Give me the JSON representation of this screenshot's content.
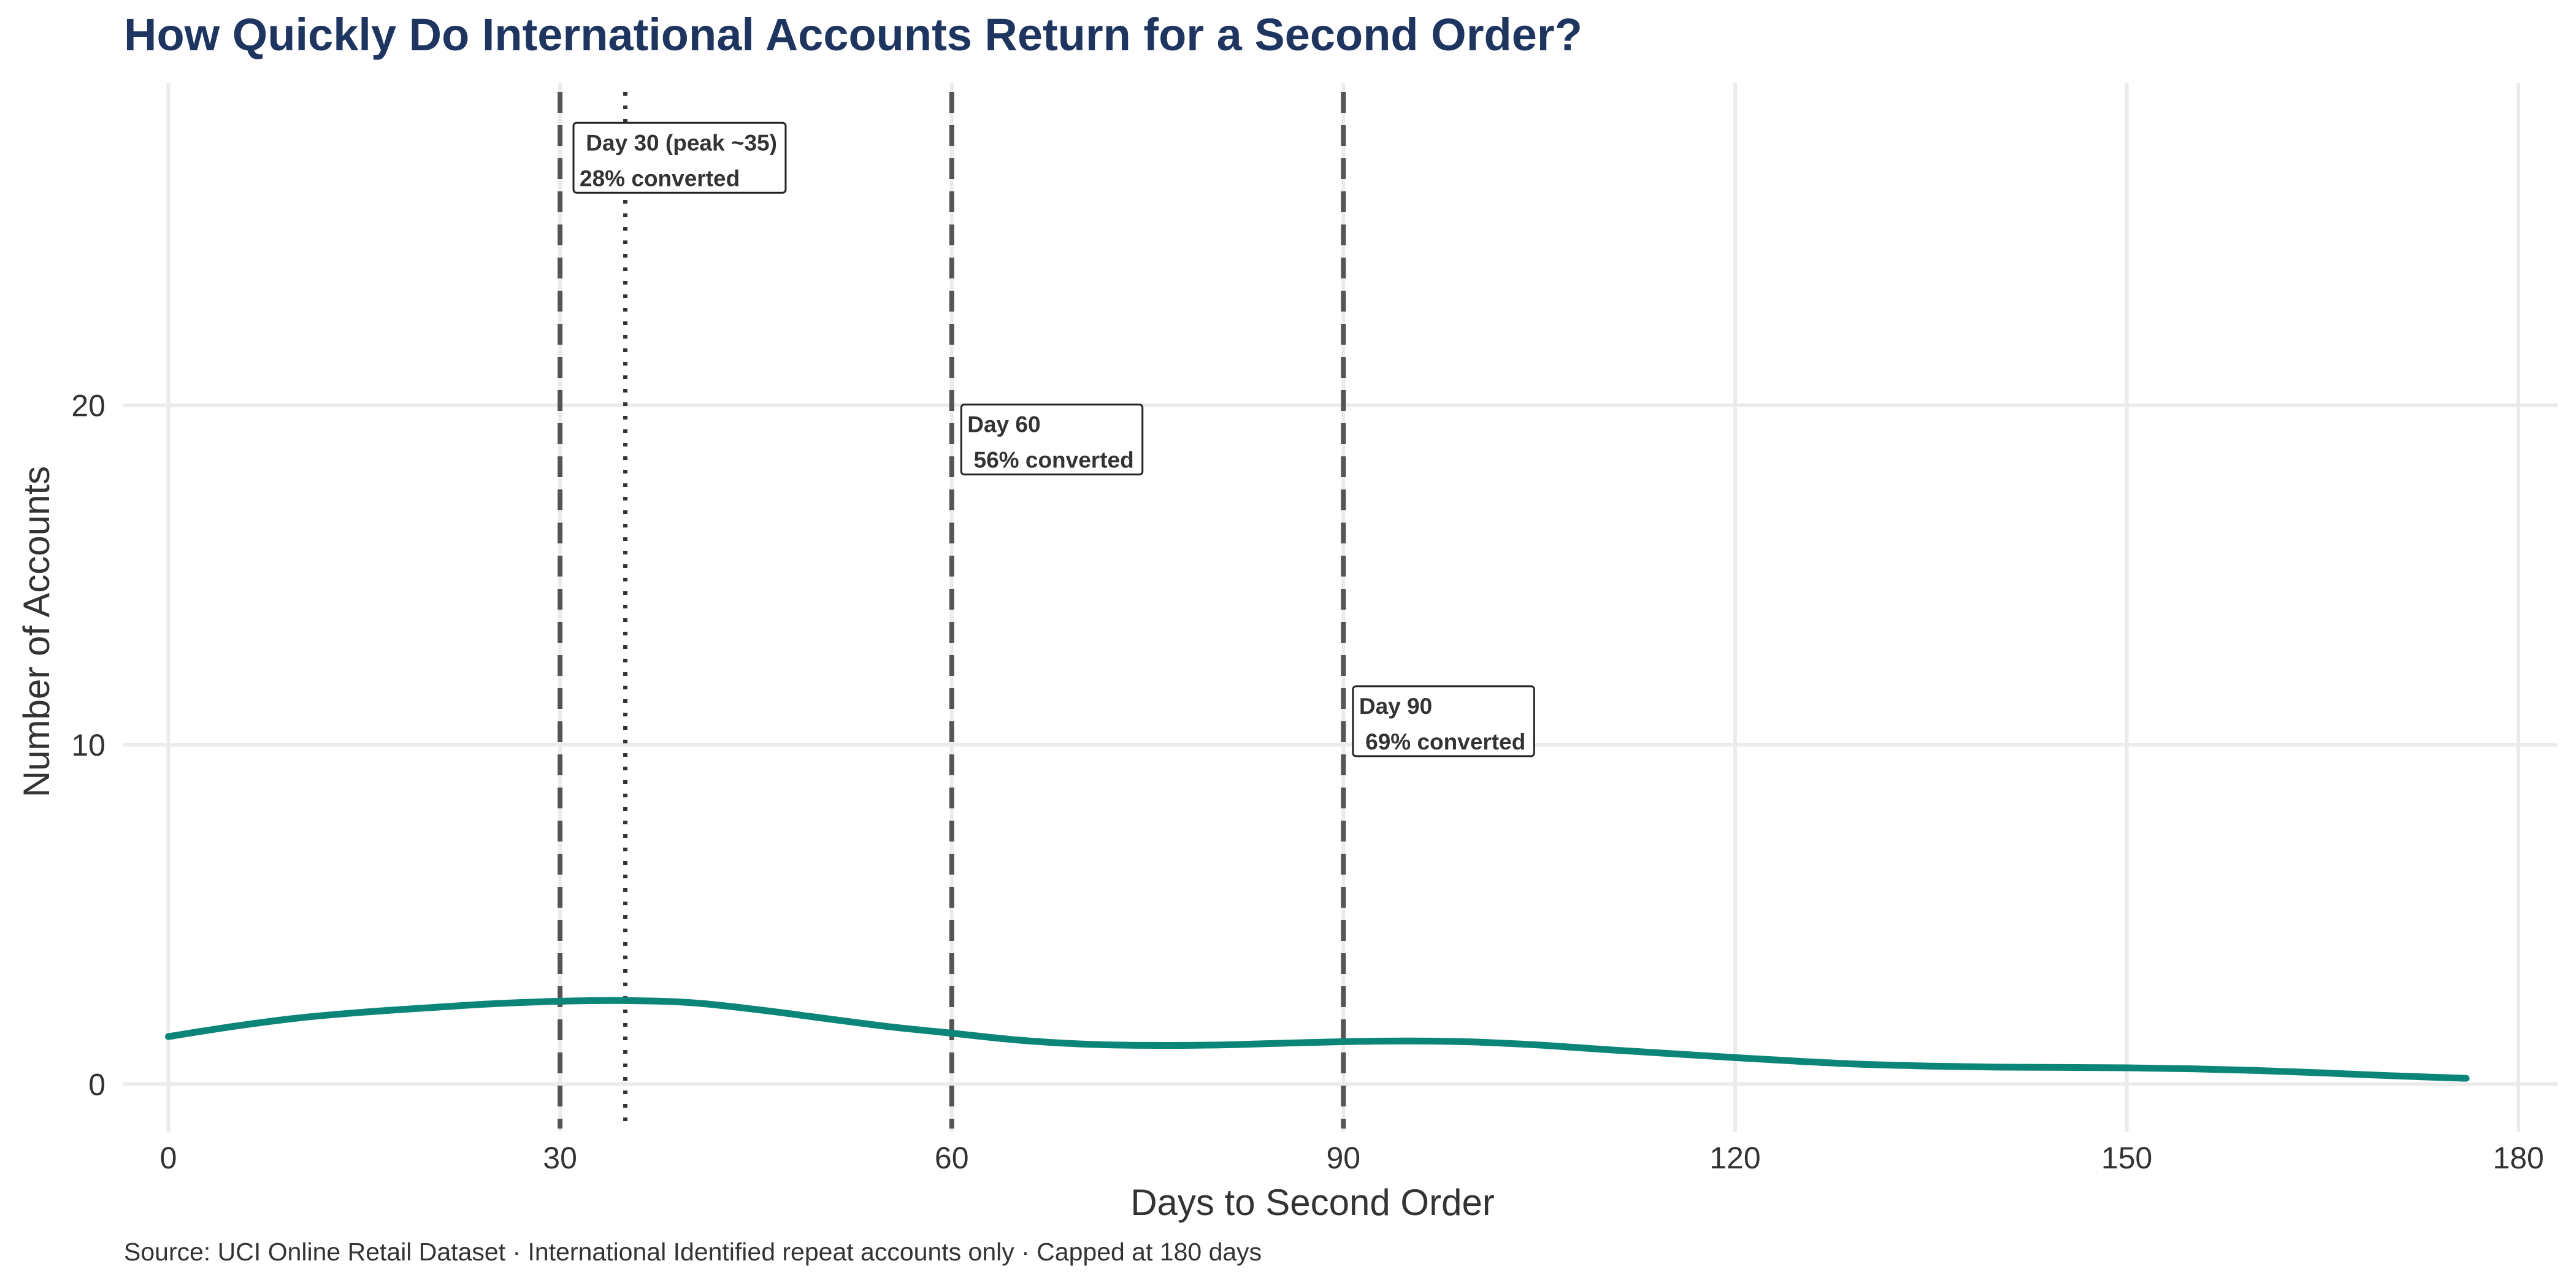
{
  "chart_data": {
    "type": "area",
    "title": "How Quickly Do International Accounts Return for a Second Order?",
    "caption": "Source: UCI Online Retail Dataset · International Identified repeat accounts only · Capped at 180 days",
    "xlabel": "Days to Second Order",
    "ylabel": "Number of Accounts",
    "xlim": [
      -3.5,
      183
    ],
    "ylim": [
      -1.4,
      29.5
    ],
    "x_ticks": [
      0,
      30,
      60,
      90,
      120,
      150,
      180
    ],
    "y_ticks": [
      0,
      10,
      20
    ],
    "grid": true,
    "legend": "none",
    "series": [
      {
        "color": "#0a8577",
        "x": [
          0,
          5,
          10,
          15,
          20,
          25,
          30,
          35,
          40,
          45,
          50,
          55,
          60,
          65,
          70,
          75,
          80,
          85,
          90,
          95,
          100,
          105,
          110,
          115,
          120,
          125,
          130,
          135,
          140,
          145,
          150,
          155,
          160,
          165,
          170,
          176
        ],
        "y": [
          1.4,
          1.7,
          1.95,
          2.12,
          2.25,
          2.37,
          2.44,
          2.46,
          2.4,
          2.2,
          1.95,
          1.7,
          1.5,
          1.3,
          1.18,
          1.14,
          1.15,
          1.2,
          1.25,
          1.27,
          1.24,
          1.15,
          1.02,
          0.9,
          0.78,
          0.67,
          0.58,
          0.53,
          0.5,
          0.49,
          0.48,
          0.45,
          0.4,
          0.33,
          0.25,
          0.17
        ]
      }
    ],
    "reference_lines": [
      {
        "x": 30,
        "style": "dashed",
        "color": "#555555"
      },
      {
        "x": 35,
        "style": "dotted",
        "color": "#333333"
      },
      {
        "x": 60,
        "style": "dashed",
        "color": "#555555"
      },
      {
        "x": 90,
        "style": "dashed",
        "color": "#555555"
      }
    ],
    "annotations": [
      {
        "x": 31.5,
        "y": 27.2,
        "line1": " Day 30 (peak ~35)",
        "line2": "28% converted"
      },
      {
        "x": 61.2,
        "y": 18.9,
        "line1": "Day 60",
        "line2": " 56% converted"
      },
      {
        "x": 91.2,
        "y": 10.6,
        "line1": "Day 90",
        "line2": " 69% converted"
      }
    ]
  }
}
